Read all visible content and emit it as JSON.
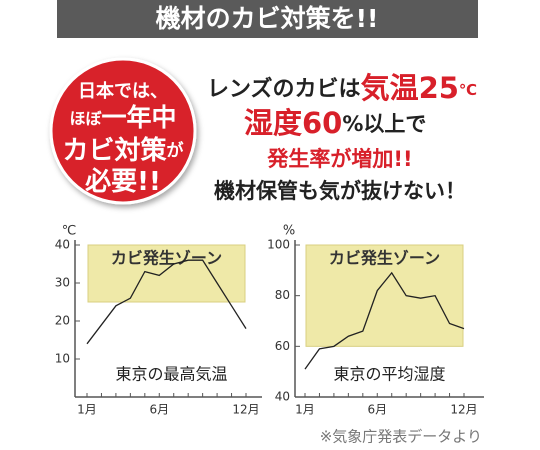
{
  "header": {
    "title": "機材のカビ対策を!!"
  },
  "badge": {
    "lines": [
      [
        "日本では、"
      ],
      [
        "ほぼ",
        "一年中"
      ],
      [
        "カビ対策",
        "が"
      ],
      [
        "必要!!"
      ]
    ]
  },
  "headline": [
    [
      "レンズのカビは",
      "気温25",
      "℃"
    ],
    [
      "湿度60",
      "%以上で"
    ],
    [
      "発生率が増加!!"
    ],
    [
      "機材保管も気が抜けない！"
    ]
  ],
  "chart_data": [
    {
      "type": "line",
      "title": "東京の最高気温",
      "y_label": "℃",
      "categories": [
        "1月",
        null,
        null,
        null,
        null,
        "6月",
        null,
        null,
        null,
        null,
        null,
        "12月"
      ],
      "series": [
        {
          "name": "最高気温",
          "color": "#222222",
          "values": [
            14,
            19,
            24,
            26,
            33,
            32,
            35,
            36,
            36,
            30,
            24,
            18
          ]
        }
      ],
      "ylim": [
        0,
        40
      ],
      "yticks": [
        10,
        20,
        30,
        40
      ],
      "band": {
        "label": "カビ発生ゾーン",
        "from": 25,
        "to": 40,
        "color": "#efe9a8"
      }
    },
    {
      "type": "line",
      "title": "東京の平均湿度",
      "y_label": "%",
      "categories": [
        "1月",
        null,
        null,
        null,
        null,
        "6月",
        null,
        null,
        null,
        null,
        null,
        "12月"
      ],
      "series": [
        {
          "name": "平均湿度",
          "color": "#222222",
          "values": [
            51,
            59,
            60,
            64,
            66,
            82,
            89,
            80,
            79,
            80,
            69,
            67
          ]
        }
      ],
      "ylim": [
        40,
        100
      ],
      "yticks": [
        40,
        60,
        80,
        100
      ],
      "band": {
        "label": "カビ発生ゾーン",
        "from": 60,
        "to": 100,
        "color": "#efe9a8"
      }
    }
  ],
  "footnote": "※気象庁発表データより"
}
